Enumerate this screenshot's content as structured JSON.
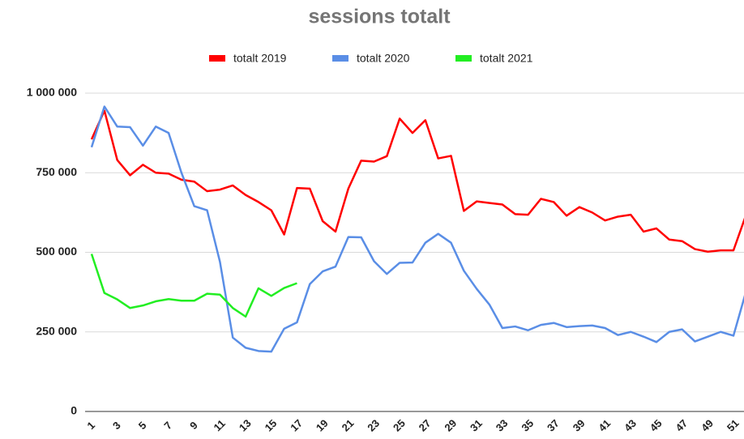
{
  "chart_data": {
    "type": "line",
    "title": "sessions totalt",
    "categories": [
      "1",
      null,
      "3",
      null,
      "5",
      null,
      "7",
      null,
      "9",
      null,
      "11",
      null,
      "13",
      null,
      "15",
      null,
      "17",
      null,
      "19",
      null,
      "21",
      null,
      "23",
      null,
      "25",
      null,
      "27",
      null,
      "29",
      null,
      "31",
      null,
      "33",
      null,
      "35",
      null,
      "37",
      null,
      "39",
      null,
      "41",
      null,
      "43",
      null,
      "45",
      null,
      "47",
      null,
      "49",
      null,
      "51",
      null
    ],
    "series": [
      {
        "name": "totalt 2019",
        "color": "#ff0000",
        "values": [
          855000,
          945000,
          790000,
          742000,
          775000,
          750000,
          747000,
          728000,
          722000,
          692000,
          697000,
          710000,
          680000,
          658000,
          632000,
          556000,
          702000,
          700000,
          598000,
          565000,
          700000,
          788000,
          785000,
          802000,
          920000,
          875000,
          915000,
          795000,
          803000,
          630000,
          660000,
          655000,
          650000,
          620000,
          618000,
          668000,
          658000,
          615000,
          642000,
          625000,
          600000,
          612000,
          618000,
          565000,
          575000,
          540000,
          535000,
          510000,
          502000,
          506000,
          506000,
          620000
        ]
      },
      {
        "name": "totalt 2020",
        "color": "#5a8ee6",
        "values": [
          830000,
          958000,
          895000,
          893000,
          835000,
          895000,
          875000,
          750000,
          645000,
          632000,
          470000,
          232000,
          200000,
          190000,
          188000,
          260000,
          280000,
          400000,
          440000,
          455000,
          548000,
          547000,
          472000,
          432000,
          467000,
          468000,
          530000,
          558000,
          530000,
          442000,
          385000,
          335000,
          262000,
          267000,
          255000,
          272000,
          278000,
          265000,
          268000,
          270000,
          262000,
          240000,
          250000,
          235000,
          218000,
          250000,
          258000,
          220000,
          235000,
          250000,
          238000,
          380000
        ]
      },
      {
        "name": "totalt 2021",
        "color": "#22ee22",
        "values": [
          495000,
          372000,
          352000,
          325000,
          333000,
          346000,
          353000,
          348000,
          348000,
          370000,
          367000,
          325000,
          298000,
          387000,
          363000,
          388000,
          403000,
          null,
          null,
          null,
          null,
          null,
          null,
          null,
          null,
          null,
          null,
          null,
          null,
          null,
          null,
          null,
          null,
          null,
          null,
          null,
          null,
          null,
          null,
          null,
          null,
          null,
          null,
          null,
          null,
          null,
          null,
          null,
          null,
          null,
          null,
          null
        ]
      }
    ],
    "ylim": [
      0,
      1000000
    ],
    "yticks": [
      0,
      {
        "value": 250000,
        "label": "250 000"
      },
      {
        "value": 500000,
        "label": "500 000"
      },
      {
        "value": 750000,
        "label": "750 000"
      },
      {
        "value": 1000000,
        "label": "1 000 000"
      }
    ],
    "grid": true,
    "legend": "top"
  }
}
